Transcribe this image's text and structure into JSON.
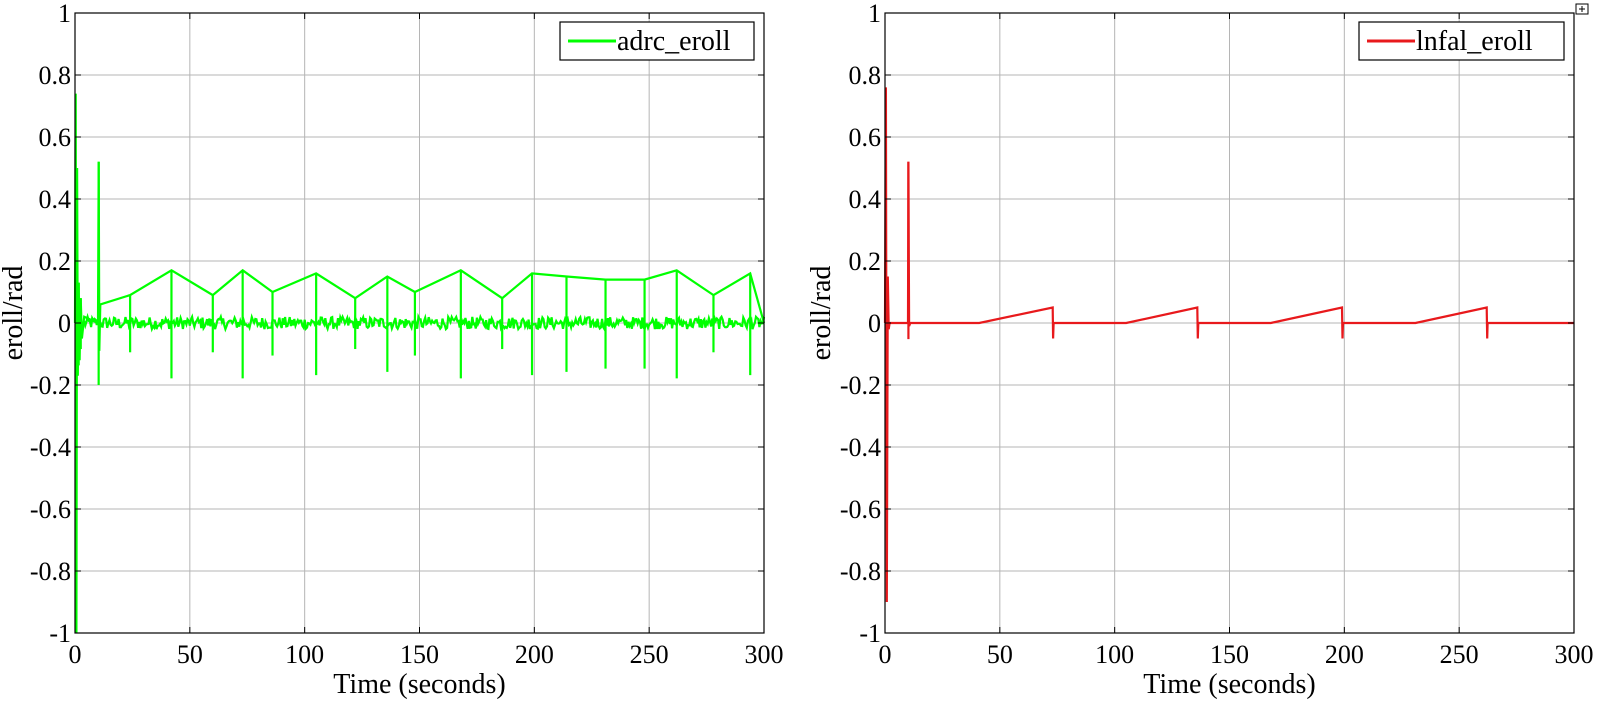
{
  "chart_data": [
    {
      "type": "line",
      "xlabel": "Time (seconds)",
      "ylabel": "eroll/rad",
      "xlim": [
        0,
        300
      ],
      "ylim": [
        -1,
        1
      ],
      "xticks": [
        0,
        50,
        100,
        150,
        200,
        250,
        300
      ],
      "xtick_labels": [
        "0",
        "50",
        "100",
        "150",
        "200",
        "250",
        "300"
      ],
      "yticks": [
        -1,
        -0.8,
        -0.6,
        -0.4,
        -0.2,
        0,
        0.2,
        0.4,
        0.6,
        0.8,
        1
      ],
      "ytick_labels": [
        "-1",
        "-0.8",
        "-0.6",
        "-0.4",
        "-0.2",
        "0",
        "0.2",
        "0.4",
        "0.6",
        "0.8",
        "1"
      ],
      "grid": true,
      "legend_position": "top-right",
      "series": [
        {
          "name": "adrc_eroll",
          "color": "#00ff00",
          "noise_band": 0.02,
          "x": [
            0,
            0.3,
            0.6,
            0.9,
            1.2,
            1.6,
            2.0,
            2.5,
            3.0,
            4.0,
            10.0,
            10.3,
            10.6,
            11.0,
            24.0,
            42.0,
            60.0,
            73.0,
            86.0,
            105.0,
            122.0,
            136.0,
            148.0,
            168.0,
            186.0,
            199.0,
            214.0,
            231.0,
            248.0,
            262.0,
            278.0,
            294.0,
            300
          ],
          "y": [
            0,
            0.74,
            -1.0,
            0.5,
            -0.17,
            0.13,
            -0.12,
            0.08,
            -0.05,
            0.02,
            0.0,
            0.52,
            -0.09,
            0.06,
            0.09,
            0.17,
            0.09,
            0.17,
            0.1,
            0.16,
            0.08,
            0.15,
            0.1,
            0.17,
            0.08,
            0.16,
            0.15,
            0.14,
            0.14,
            0.17,
            0.09,
            0.16,
            0.0
          ]
        }
      ]
    },
    {
      "type": "line",
      "xlabel": "Time (seconds)",
      "ylabel": "eroll/rad",
      "xlim": [
        0,
        300
      ],
      "ylim": [
        -1,
        1
      ],
      "xticks": [
        0,
        50,
        100,
        150,
        200,
        250,
        300
      ],
      "xtick_labels": [
        "0",
        "50",
        "100",
        "150",
        "200",
        "250",
        "300"
      ],
      "yticks": [
        -1,
        -0.8,
        -0.6,
        -0.4,
        -0.2,
        0,
        0.2,
        0.4,
        0.6,
        0.8,
        1
      ],
      "ytick_labels": [
        "-1",
        "-0.8",
        "-0.6",
        "-0.4",
        "-0.2",
        "0",
        "0.2",
        "0.4",
        "0.6",
        "0.8",
        "1"
      ],
      "grid": true,
      "legend_position": "top-right",
      "series": [
        {
          "name": "lnfal_eroll",
          "color": "#e8191c",
          "x": [
            0,
            0.4,
            0.8,
            1.2,
            1.6,
            2.0,
            10.0,
            10.2,
            10.5,
            11.0,
            41.0,
            73.0,
            73.2,
            73.4,
            105.0,
            136.0,
            136.2,
            136.4,
            168.0,
            199.0,
            199.2,
            199.4,
            231.0,
            262.0,
            262.2,
            262.4,
            294.0,
            300
          ],
          "y": [
            0,
            0.76,
            -0.9,
            0.15,
            -0.02,
            0.0,
            0.0,
            0.52,
            -0.01,
            0.0,
            0.0,
            0.05,
            -0.05,
            0.0,
            0.0,
            0.05,
            -0.05,
            0.0,
            0.0,
            0.05,
            -0.05,
            0.0,
            0.0,
            0.05,
            -0.05,
            0.0,
            0.0,
            0.0
          ]
        }
      ]
    }
  ]
}
